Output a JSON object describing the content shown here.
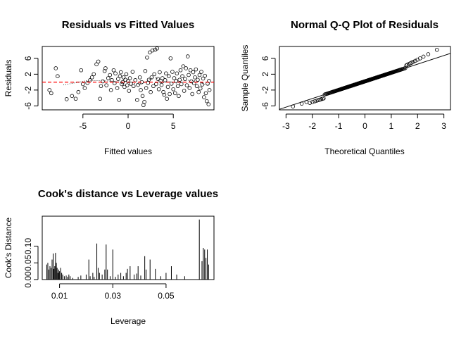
{
  "chart_data": [
    {
      "type": "scatter",
      "title": "Residuals vs Fitted Values",
      "xlabel": "Fitted values",
      "ylabel": "Residuals",
      "xlim": [
        -9.5,
        9.5
      ],
      "ylim": [
        -7,
        9
      ],
      "xticks": [
        -5,
        0,
        5
      ],
      "yticks": [
        -6,
        -2,
        2,
        6
      ],
      "reference_line": {
        "y": 0,
        "color": "#ff0000",
        "style": "dashed"
      },
      "smooth_line": {
        "color": "#000000",
        "style": "dotted"
      },
      "points": [
        [
          -8.7,
          -2.0
        ],
        [
          -8.5,
          -2.8
        ],
        [
          -8.0,
          3.5
        ],
        [
          -7.8,
          1.5
        ],
        [
          -6.8,
          -4.3
        ],
        [
          -6.2,
          -3.5
        ],
        [
          -5.8,
          -4.2
        ],
        [
          -5.5,
          -2.5
        ],
        [
          -5.2,
          3.0
        ],
        [
          -5.0,
          -0.5
        ],
        [
          -4.8,
          -1.5
        ],
        [
          -4.5,
          -0.2
        ],
        [
          -4.2,
          0.5
        ],
        [
          -4.0,
          1.2
        ],
        [
          -3.8,
          2.0
        ],
        [
          -3.5,
          4.5
        ],
        [
          -3.3,
          5.2
        ],
        [
          -3.1,
          -4.2
        ],
        [
          -3.0,
          -1.0
        ],
        [
          -2.8,
          0.2
        ],
        [
          -2.6,
          2.8
        ],
        [
          -2.5,
          3.5
        ],
        [
          -2.4,
          -0.8
        ],
        [
          -2.2,
          1.0
        ],
        [
          -2.0,
          1.8
        ],
        [
          -1.9,
          -2.0
        ],
        [
          -1.8,
          0.5
        ],
        [
          -1.6,
          3.0
        ],
        [
          -1.5,
          -0.3
        ],
        [
          -1.4,
          2.2
        ],
        [
          -1.2,
          -1.5
        ],
        [
          -1.1,
          0.8
        ],
        [
          -1.0,
          -4.5
        ],
        [
          -0.9,
          1.5
        ],
        [
          -0.8,
          2.5
        ],
        [
          -0.7,
          -0.5
        ],
        [
          -0.6,
          0.0
        ],
        [
          -0.5,
          1.2
        ],
        [
          -0.4,
          -1.2
        ],
        [
          -0.3,
          0.6
        ],
        [
          -0.2,
          2.0
        ],
        [
          -0.1,
          -0.8
        ],
        [
          0.0,
          0.3
        ],
        [
          0.1,
          -2.2
        ],
        [
          0.2,
          1.0
        ],
        [
          0.3,
          -0.4
        ],
        [
          0.5,
          2.6
        ],
        [
          0.6,
          -1.0
        ],
        [
          0.8,
          0.5
        ],
        [
          1.0,
          -4.5
        ],
        [
          1.1,
          -0.7
        ],
        [
          1.3,
          1.2
        ],
        [
          1.4,
          -2.0
        ],
        [
          1.5,
          0.0
        ],
        [
          1.6,
          -3.5
        ],
        [
          1.7,
          -5.8
        ],
        [
          1.8,
          -5.0
        ],
        [
          1.9,
          2.8
        ],
        [
          2.0,
          -1.5
        ],
        [
          2.1,
          6.2
        ],
        [
          2.2,
          -0.2
        ],
        [
          2.3,
          0.6
        ],
        [
          2.4,
          7.5
        ],
        [
          2.5,
          -2.5
        ],
        [
          2.6,
          1.2
        ],
        [
          2.7,
          8.0
        ],
        [
          2.8,
          -1.0
        ],
        [
          2.9,
          2.0
        ],
        [
          3.0,
          8.2
        ],
        [
          3.1,
          -0.5
        ],
        [
          3.2,
          8.5
        ],
        [
          3.3,
          0.8
        ],
        [
          3.4,
          -1.8
        ],
        [
          3.5,
          2.5
        ],
        [
          3.6,
          0.3
        ],
        [
          3.7,
          -0.7
        ],
        [
          3.8,
          1.0
        ],
        [
          3.9,
          -2.5
        ],
        [
          4.0,
          -3.2
        ],
        [
          4.1,
          0.5
        ],
        [
          4.2,
          2.2
        ],
        [
          4.3,
          -4.2
        ],
        [
          4.4,
          -1.2
        ],
        [
          4.5,
          1.5
        ],
        [
          4.6,
          -3.0
        ],
        [
          4.7,
          6.0
        ],
        [
          4.8,
          -0.4
        ],
        [
          4.9,
          2.6
        ],
        [
          5.0,
          -1.8
        ],
        [
          5.1,
          1.0
        ],
        [
          5.2,
          -2.8
        ],
        [
          5.3,
          0.3
        ],
        [
          5.4,
          2.2
        ],
        [
          5.5,
          -1.0
        ],
        [
          5.6,
          -3.5
        ],
        [
          5.7,
          0.6
        ],
        [
          5.8,
          3.0
        ],
        [
          5.9,
          -0.5
        ],
        [
          6.0,
          1.5
        ],
        [
          6.1,
          4.0
        ],
        [
          6.2,
          -2.2
        ],
        [
          6.3,
          0.8
        ],
        [
          6.4,
          3.5
        ],
        [
          6.5,
          -0.8
        ],
        [
          6.6,
          6.5
        ],
        [
          6.7,
          1.8
        ],
        [
          6.8,
          -1.5
        ],
        [
          6.9,
          3.0
        ],
        [
          7.0,
          0.2
        ],
        [
          7.1,
          -3.0
        ],
        [
          7.2,
          2.5
        ],
        [
          7.3,
          -0.3
        ],
        [
          7.4,
          1.2
        ],
        [
          7.5,
          3.2
        ],
        [
          7.6,
          -1.0
        ],
        [
          7.7,
          0.6
        ],
        [
          7.8,
          -2.5
        ],
        [
          7.9,
          1.8
        ],
        [
          8.0,
          -1.6
        ],
        [
          8.1,
          2.6
        ],
        [
          8.2,
          -0.6
        ],
        [
          8.3,
          0.9
        ],
        [
          8.4,
          -3.8
        ],
        [
          8.5,
          1.6
        ],
        [
          8.6,
          -2.8
        ],
        [
          8.7,
          -4.8
        ],
        [
          8.8,
          -0.4
        ],
        [
          8.9,
          -5.6
        ],
        [
          9.0,
          -2.0
        ],
        [
          8.95,
          0.3
        ]
      ]
    },
    {
      "type": "scatter",
      "title": "Normal Q-Q Plot of Residuals",
      "xlabel": "Theoretical Quantiles",
      "ylabel": "Sample Quantiles",
      "xlim": [
        -3.25,
        3.25
      ],
      "ylim": [
        -7,
        9
      ],
      "xticks": [
        -3,
        -2,
        -1,
        0,
        1,
        2,
        3
      ],
      "yticks": [
        -6,
        -2,
        2,
        6
      ],
      "qq_line": {
        "intercept": 0.2,
        "slope": 2.17,
        "color": "#000000"
      },
      "sample_size": 200
    },
    {
      "type": "bar",
      "title": "Cook's distance vs Leverage values",
      "xlabel": "Leverage",
      "ylabel": "Cook's Distance",
      "xlim": [
        0.0035,
        0.068
      ],
      "ylim": [
        0,
        0.19
      ],
      "xticks": [
        0.01,
        0.03,
        0.05
      ],
      "xtick_labels": [
        "0.01",
        "0.03",
        "0.05"
      ],
      "yticks": [
        0.0,
        0.05,
        0.1
      ],
      "ytick_labels": [
        "0.00",
        "0.05",
        "0.10"
      ],
      "spikes": [
        [
          0.0052,
          0.045
        ],
        [
          0.0056,
          0.05
        ],
        [
          0.006,
          0.03
        ],
        [
          0.0064,
          0.04
        ],
        [
          0.0068,
          0.035
        ],
        [
          0.0072,
          0.06
        ],
        [
          0.0076,
          0.078
        ],
        [
          0.0079,
          0.032
        ],
        [
          0.0082,
          0.04
        ],
        [
          0.0085,
          0.08
        ],
        [
          0.0088,
          0.05
        ],
        [
          0.0091,
          0.035
        ],
        [
          0.0094,
          0.02
        ],
        [
          0.0097,
          0.03
        ],
        [
          0.01,
          0.025
        ],
        [
          0.0104,
          0.035
        ],
        [
          0.0108,
          0.02
        ],
        [
          0.0112,
          0.015
        ],
        [
          0.0118,
          0.01
        ],
        [
          0.0125,
          0.012
        ],
        [
          0.013,
          0.008
        ],
        [
          0.0135,
          0.015
        ],
        [
          0.014,
          0.01
        ],
        [
          0.015,
          0.005
        ],
        [
          0.017,
          0.008
        ],
        [
          0.018,
          0.012
        ],
        [
          0.02,
          0.015
        ],
        [
          0.021,
          0.06
        ],
        [
          0.0215,
          0.01
        ],
        [
          0.0225,
          0.02
        ],
        [
          0.023,
          0.008
        ],
        [
          0.024,
          0.108
        ],
        [
          0.0245,
          0.035
        ],
        [
          0.025,
          0.02
        ],
        [
          0.026,
          0.015
        ],
        [
          0.027,
          0.03
        ],
        [
          0.0275,
          0.105
        ],
        [
          0.028,
          0.03
        ],
        [
          0.029,
          0.01
        ],
        [
          0.03,
          0.09
        ],
        [
          0.031,
          0.008
        ],
        [
          0.032,
          0.015
        ],
        [
          0.033,
          0.02
        ],
        [
          0.034,
          0.01
        ],
        [
          0.035,
          0.02
        ],
        [
          0.0355,
          0.032
        ],
        [
          0.0365,
          0.04
        ],
        [
          0.038,
          0.015
        ],
        [
          0.039,
          0.018
        ],
        [
          0.0395,
          0.04
        ],
        [
          0.0405,
          0.012
        ],
        [
          0.042,
          0.07
        ],
        [
          0.0425,
          0.03
        ],
        [
          0.044,
          0.06
        ],
        [
          0.046,
          0.032
        ],
        [
          0.048,
          0.01
        ],
        [
          0.05,
          0.02
        ],
        [
          0.052,
          0.04
        ],
        [
          0.054,
          0.015
        ],
        [
          0.057,
          0.01
        ],
        [
          0.0625,
          0.18
        ],
        [
          0.0635,
          0.055
        ],
        [
          0.064,
          0.095
        ],
        [
          0.0645,
          0.09
        ],
        [
          0.065,
          0.065
        ],
        [
          0.0655,
          0.09
        ],
        [
          0.066,
          0.045
        ]
      ]
    }
  ]
}
